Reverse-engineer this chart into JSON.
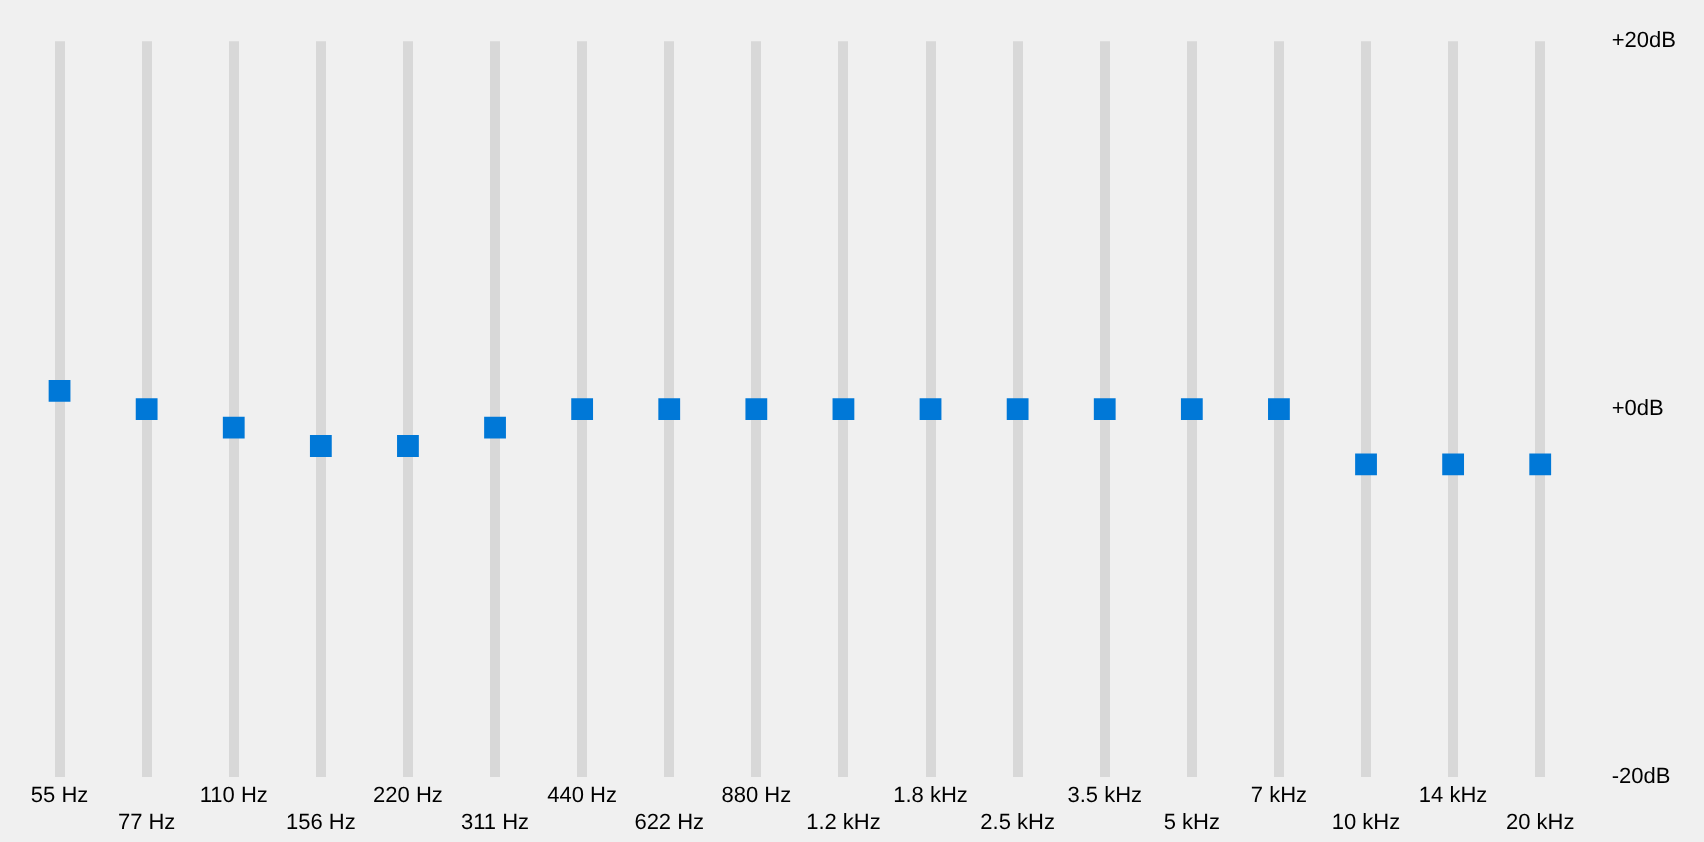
{
  "chart_data": {
    "type": "scatter",
    "categories": [
      "55 Hz",
      "77 Hz",
      "110 Hz",
      "156 Hz",
      "220 Hz",
      "311 Hz",
      "440 Hz",
      "622 Hz",
      "880 Hz",
      "1.2 kHz",
      "1.8 kHz",
      "2.5 kHz",
      "3.5 kHz",
      "5 kHz",
      "7 kHz",
      "10 kHz",
      "14 kHz",
      "20 kHz"
    ],
    "series": [
      {
        "color": "#0078d7",
        "values": [
          1,
          0,
          -1,
          -2,
          -2,
          -1,
          0,
          0,
          0,
          0,
          0,
          0,
          0,
          0,
          0,
          -3,
          -3,
          -3
        ]
      }
    ],
    "ylim": [
      -20,
      20
    ],
    "yticks": [
      {
        "value": -20,
        "label": "-20dB"
      },
      {
        "value": 0,
        "label": "+0dB"
      },
      {
        "value": 20,
        "label": "+20dB"
      }
    ],
    "grid": "x",
    "legend": false,
    "marker": "square"
  }
}
